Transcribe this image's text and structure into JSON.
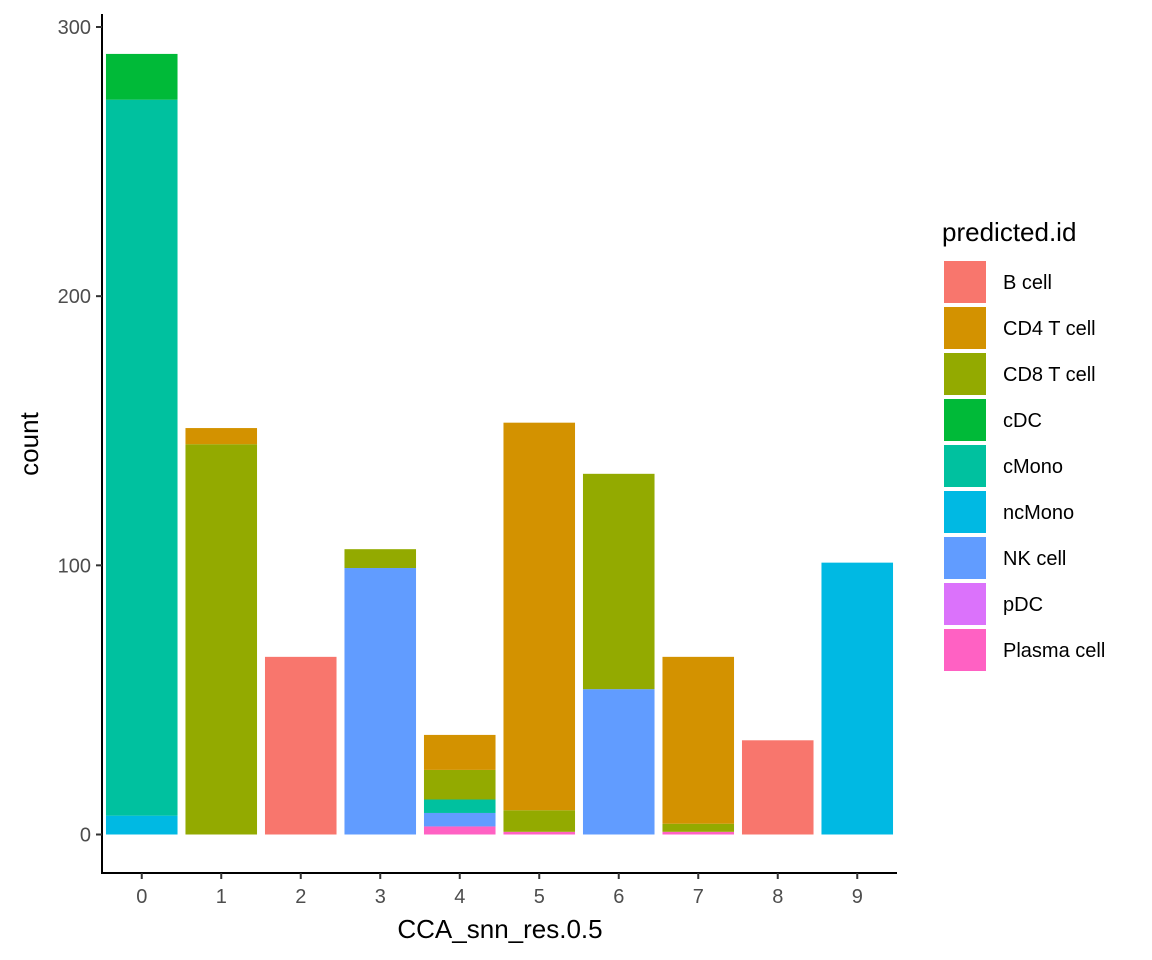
{
  "chart_data": {
    "type": "bar",
    "stacked": true,
    "title": "",
    "xlabel": "CCA_snn_res.0.5",
    "ylabel": "count",
    "categories": [
      "0",
      "1",
      "2",
      "3",
      "4",
      "5",
      "6",
      "7",
      "8",
      "9"
    ],
    "ylim": [
      0,
      300
    ],
    "yticks": [
      0,
      100,
      200,
      300
    ],
    "grid": false,
    "legend_position": "right",
    "legend_title": "predicted.id",
    "series": [
      {
        "name": "B cell",
        "color": "#F8766D",
        "values": [
          0,
          0,
          66,
          0,
          0,
          0,
          0,
          0,
          35,
          0
        ]
      },
      {
        "name": "CD4 T cell",
        "color": "#D39200",
        "values": [
          0,
          6,
          0,
          0,
          13,
          144,
          0,
          62,
          0,
          0
        ]
      },
      {
        "name": "CD8 T cell",
        "color": "#93AA00",
        "values": [
          0,
          145,
          0,
          7,
          11,
          8,
          80,
          3,
          0,
          0
        ]
      },
      {
        "name": "cDC",
        "color": "#00BA38",
        "values": [
          17,
          0,
          0,
          0,
          0,
          0,
          0,
          0,
          0,
          0
        ]
      },
      {
        "name": "cMono",
        "color": "#00C19F",
        "values": [
          266,
          0,
          0,
          0,
          5,
          0,
          0,
          0,
          0,
          0
        ]
      },
      {
        "name": "ncMono",
        "color": "#00B9E3",
        "values": [
          7,
          0,
          0,
          0,
          0,
          0,
          0,
          0,
          0,
          101
        ]
      },
      {
        "name": "NK cell",
        "color": "#619CFF",
        "values": [
          0,
          0,
          0,
          99,
          5,
          0,
          54,
          0,
          0,
          0
        ]
      },
      {
        "name": "pDC",
        "color": "#DB72FB",
        "values": [
          0,
          0,
          0,
          0,
          0,
          0,
          0,
          0,
          0,
          0
        ]
      },
      {
        "name": "Plasma cell",
        "color": "#FF61C3",
        "values": [
          0,
          0,
          0,
          0,
          3,
          1,
          0,
          1,
          0,
          0
        ]
      }
    ]
  }
}
